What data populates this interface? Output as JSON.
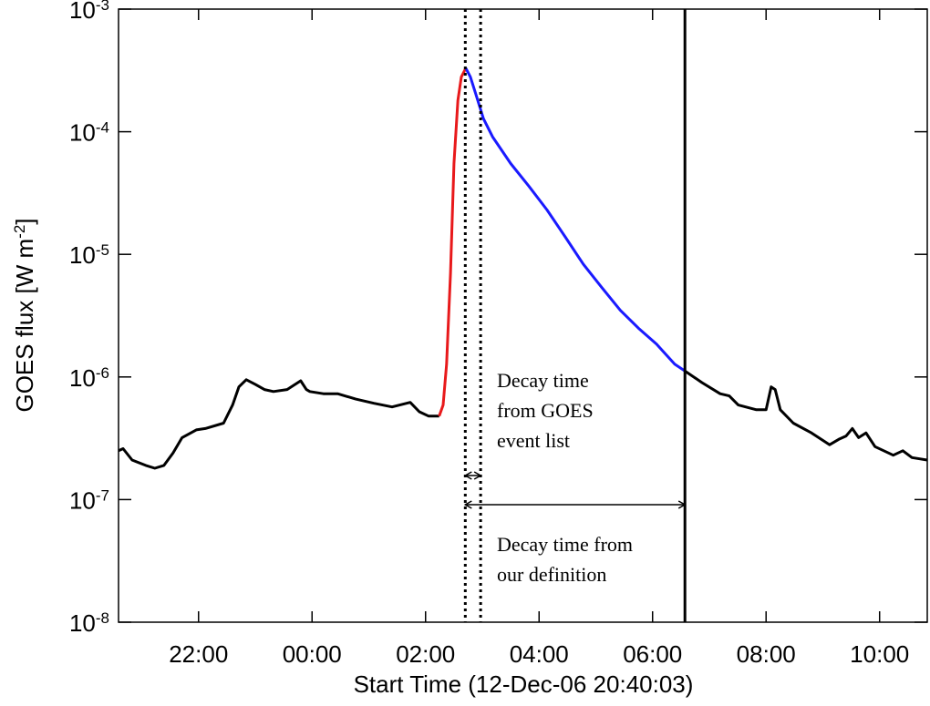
{
  "chart_data": {
    "type": "line",
    "xlabel": "Start Time (12-Dec-06 20:40:03)",
    "ylabel": {
      "text": "GOES flux [W m",
      "superscript": "-2",
      "end": "]"
    },
    "ylog": true,
    "xlim": [
      -3.41,
      10.84
    ],
    "ylim": [
      1e-08,
      0.001
    ],
    "xticks": [
      {
        "value": -2,
        "label": "22:00"
      },
      {
        "value": 0,
        "label": "00:00"
      },
      {
        "value": 2,
        "label": "02:00"
      },
      {
        "value": 4,
        "label": "04:00"
      },
      {
        "value": 6,
        "label": "06:00"
      },
      {
        "value": 8,
        "label": "08:00"
      },
      {
        "value": 10,
        "label": "10:00"
      }
    ],
    "yticks": [
      {
        "value": 0.001,
        "label": "10",
        "exponent": "-3"
      },
      {
        "value": 0.0001,
        "label": "10",
        "exponent": "-4"
      },
      {
        "value": 1e-05,
        "label": "10",
        "exponent": "-5"
      },
      {
        "value": 1e-06,
        "label": "10",
        "exponent": "-6"
      },
      {
        "value": 1e-07,
        "label": "10",
        "exponent": "-7"
      },
      {
        "value": 1e-08,
        "label": "10",
        "exponent": "-8"
      }
    ],
    "series": [
      {
        "color": "#000000",
        "x": [
          -3.41,
          -3.33,
          -3.17,
          -2.93,
          -2.77,
          -2.61,
          -2.45,
          -2.29,
          -2.04,
          -1.88,
          -1.56,
          -1.4,
          -1.29,
          -1.16,
          -1.0,
          -0.84,
          -0.68,
          -0.44,
          -0.2,
          -0.1,
          -0.04,
          0.2,
          0.45,
          0.77,
          1.09,
          1.41,
          1.73,
          1.89,
          2.05,
          2.24
        ],
        "values": [
          2.5e-07,
          2.6e-07,
          2.1e-07,
          1.9e-07,
          1.8e-07,
          1.9e-07,
          2.4e-07,
          3.2e-07,
          3.7e-07,
          3.8e-07,
          4.2e-07,
          5.9e-07,
          8.3e-07,
          9.5e-07,
          8.7e-07,
          7.9e-07,
          7.6e-07,
          7.9e-07,
          9.3e-07,
          7.9e-07,
          7.6e-07,
          7.3e-07,
          7.3e-07,
          6.6e-07,
          6.1e-07,
          5.7e-07,
          6.2e-07,
          5.2e-07,
          4.8e-07,
          4.8e-07
        ]
      },
      {
        "color": "#e8191b",
        "x": [
          2.24,
          2.31,
          2.37,
          2.44,
          2.5,
          2.57,
          2.63,
          2.71
        ],
        "values": [
          4.8e-07,
          5.9e-07,
          1.27e-06,
          7e-06,
          5.5e-05,
          0.00018,
          0.00028,
          0.00033
        ]
      },
      {
        "color": "#1a1aff",
        "x": [
          2.71,
          2.79,
          2.89,
          3.02,
          3.18,
          3.5,
          3.82,
          4.14,
          4.46,
          4.78,
          5.1,
          5.43,
          5.75,
          6.07,
          6.39,
          6.57
        ],
        "values": [
          0.00033,
          0.00028,
          0.0002,
          0.000128,
          9.1e-05,
          5.5e-05,
          3.6e-05,
          2.3e-05,
          1.39e-05,
          8.3e-06,
          5.4e-06,
          3.5e-06,
          2.5e-06,
          1.85e-06,
          1.27e-06,
          1.12e-06
        ]
      },
      {
        "color": "#000000",
        "x": [
          6.57,
          6.87,
          7.19,
          7.35,
          7.51,
          7.83,
          8.0,
          8.09,
          8.16,
          8.25,
          8.48,
          8.8,
          9.12,
          9.28,
          9.41,
          9.52,
          9.63,
          9.76,
          9.92,
          10.24,
          10.41,
          10.57,
          10.84
        ],
        "values": [
          1.12e-06,
          9e-07,
          7.3e-07,
          7e-07,
          5.9e-07,
          5.4e-07,
          5.4e-07,
          8.3e-07,
          7.9e-07,
          5.4e-07,
          4.2e-07,
          3.5e-07,
          2.8e-07,
          3.1e-07,
          3.3e-07,
          3.8e-07,
          3.2e-07,
          3.5e-07,
          2.7e-07,
          2.3e-07,
          2.5e-07,
          2.2e-07,
          2.1e-07
        ]
      }
    ],
    "vlines": [
      {
        "x": 2.7,
        "style": "dotted"
      },
      {
        "x": 2.97,
        "style": "dotted"
      },
      {
        "x": 6.57,
        "style": "solid"
      }
    ],
    "annotations": [
      {
        "lines": [
          "Decay time",
          "from GOES",
          "event list"
        ]
      },
      {
        "lines": [
          "Decay time from",
          "our definition"
        ]
      }
    ]
  }
}
